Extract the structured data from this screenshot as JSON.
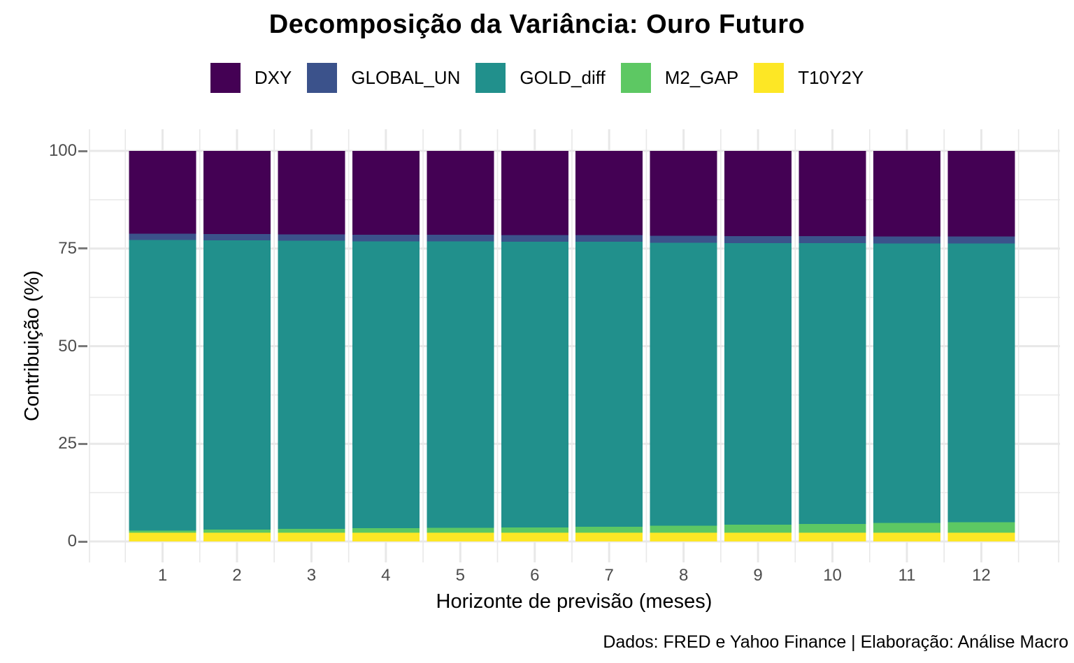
{
  "title": "Decomposição da Variância: Ouro Futuro",
  "caption": "Dados: FRED e Yahoo Finance | Elaboração: Análise Macro",
  "colors": {
    "DXY": "#440154",
    "GLOBAL_UN": "#3B528B",
    "GOLD_diff": "#21908C",
    "M2_GAP": "#5DC863",
    "T10Y2Y": "#FDE725",
    "grid": "#E8E8E8",
    "tick_text": "#4D4D4D"
  },
  "legend": {
    "position": "top",
    "items": [
      {
        "label": "DXY",
        "color": "#440154"
      },
      {
        "label": "GLOBAL_UN",
        "color": "#3B528B"
      },
      {
        "label": "GOLD_diff",
        "color": "#21908C"
      },
      {
        "label": "M2_GAP",
        "color": "#5DC863"
      },
      {
        "label": "T10Y2Y",
        "color": "#FDE725"
      }
    ]
  },
  "y_axis": {
    "title": "Contribuição (%)",
    "tick_values": [
      0,
      25,
      50,
      75,
      100
    ],
    "minor_tick_values": [
      12.5,
      37.5,
      62.5,
      87.5
    ]
  },
  "x_axis": {
    "title": "Horizonte de previsão (meses)",
    "tick_values": [
      1,
      2,
      3,
      4,
      5,
      6,
      7,
      8,
      9,
      10,
      11,
      12
    ]
  },
  "chart_data": {
    "type": "bar",
    "stacked": true,
    "title": "Decomposição da Variância: Ouro Futuro",
    "xlabel": "Horizonte de previsão (meses)",
    "ylabel": "Contribuição (%)",
    "ylim": [
      0,
      100
    ],
    "grid": true,
    "legend_position": "top",
    "categories": [
      1,
      2,
      3,
      4,
      5,
      6,
      7,
      8,
      9,
      10,
      11,
      12
    ],
    "stack_order_bottom_to_top": [
      "T10Y2Y",
      "M2_GAP",
      "GOLD_diff",
      "GLOBAL_UN",
      "DXY"
    ],
    "series": [
      {
        "name": "DXY",
        "color": "#440154",
        "values": [
          21.2,
          21.3,
          21.4,
          21.5,
          21.5,
          21.6,
          21.6,
          21.7,
          21.8,
          21.8,
          21.9,
          21.9
        ]
      },
      {
        "name": "GLOBAL_UN",
        "color": "#3B528B",
        "values": [
          1.6,
          1.6,
          1.6,
          1.7,
          1.7,
          1.7,
          1.7,
          1.8,
          1.8,
          1.8,
          1.8,
          1.8
        ]
      },
      {
        "name": "GOLD_diff",
        "color": "#21908C",
        "values": [
          74.4,
          74.1,
          73.8,
          73.4,
          73.3,
          73.1,
          72.9,
          72.5,
          72.1,
          71.9,
          71.6,
          71.4
        ]
      },
      {
        "name": "M2_GAP",
        "color": "#5DC863",
        "values": [
          0.6,
          0.8,
          1.0,
          1.2,
          1.3,
          1.4,
          1.6,
          1.8,
          2.1,
          2.3,
          2.5,
          2.7
        ]
      },
      {
        "name": "T10Y2Y",
        "color": "#FDE725",
        "values": [
          2.2,
          2.2,
          2.2,
          2.2,
          2.2,
          2.2,
          2.2,
          2.2,
          2.2,
          2.2,
          2.2,
          2.2
        ]
      }
    ]
  }
}
